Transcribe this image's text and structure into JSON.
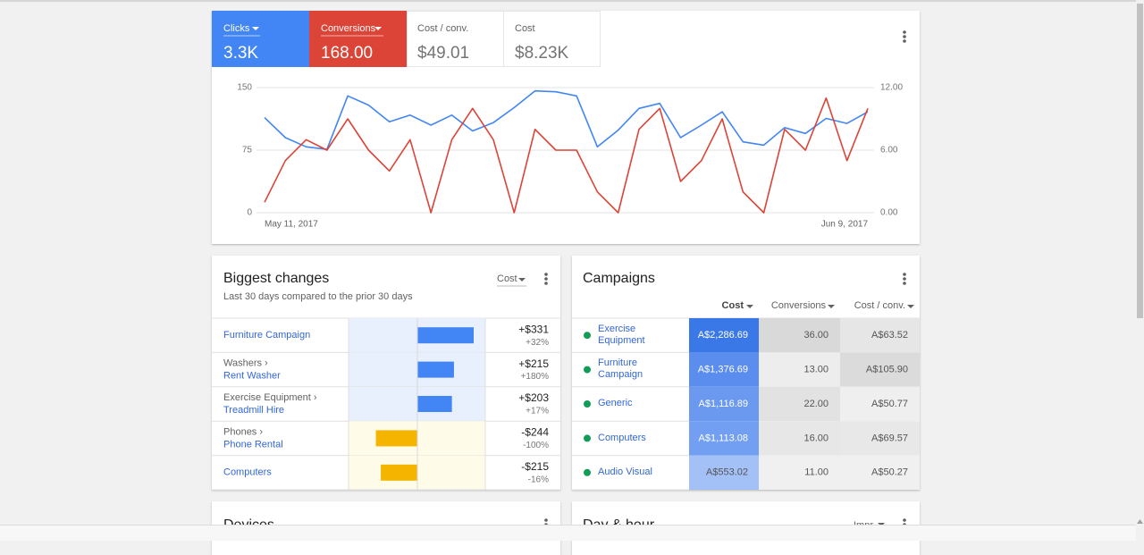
{
  "scorecards": [
    {
      "label": "Cost / conv.",
      "value": "$49.01"
    },
    {
      "label": "Cost",
      "value": "$8.23K"
    }
  ],
  "chart_data": {
    "type": "line",
    "categories": [
      "May 11, 2017",
      null,
      null,
      null,
      null,
      null,
      null,
      null,
      null,
      null,
      null,
      null,
      null,
      null,
      null,
      null,
      null,
      null,
      null,
      null,
      null,
      null,
      null,
      null,
      null,
      null,
      null,
      null,
      null,
      "Jun 9, 2017"
    ],
    "series": [
      {
        "name": "Clicks",
        "total": "3.3K",
        "color": "#4285f4",
        "values": [
          114,
          90,
          79,
          76,
          140,
          129,
          109,
          117,
          105,
          117,
          98,
          108,
          126,
          146,
          145,
          140,
          79,
          99,
          125,
          131,
          90,
          105,
          121,
          85,
          81,
          102,
          95,
          113,
          107,
          121
        ]
      },
      {
        "name": "Conversions",
        "total": "168.00",
        "color": "#db4437",
        "axis": "y2",
        "values": [
          1,
          5,
          7,
          6,
          9,
          6,
          4,
          7,
          0,
          7,
          10,
          7,
          0,
          8,
          6,
          6,
          2,
          0,
          8,
          10,
          3,
          5,
          9,
          2,
          0,
          8,
          6,
          11,
          5,
          10
        ]
      }
    ],
    "ylim": [
      0,
      150
    ],
    "yticks": [
      0,
      75,
      150
    ],
    "y2lim": [
      0,
      12
    ],
    "y2ticks": [
      {
        "value": 0,
        "label": "0.00"
      },
      {
        "value": 6,
        "label": "6.00"
      },
      {
        "value": 12,
        "label": "12.00"
      }
    ],
    "grid": true
  },
  "biggest_changes": {
    "title": "Biggest changes",
    "subtitle": "Last 30 days compared to the prior 30 days",
    "metric": "Cost",
    "rows": [
      {
        "name": "Furniture Campaign",
        "change": 331,
        "change_label": "+$331",
        "percent_label": "+32%"
      },
      {
        "parent": "Washers ›",
        "name": "Rent Washer",
        "change": 215,
        "change_label": "+$215",
        "percent_label": "+180%"
      },
      {
        "parent": "Exercise Equipment ›",
        "name": "Treadmill Hire",
        "change": 203,
        "change_label": "+$203",
        "percent_label": "+17%"
      },
      {
        "parent": "Phones ›",
        "name": "Phone Rental",
        "change": -244,
        "change_label": "-$244",
        "percent_label": "-100%"
      },
      {
        "name": "Computers",
        "change": -215,
        "change_label": "-$215",
        "percent_label": "-16%"
      }
    ]
  },
  "campaigns": {
    "title": "Campaigns",
    "columns": [
      "Cost",
      "Conversions",
      "Cost / conv."
    ],
    "rows": [
      {
        "name": "Exercise Equipment",
        "cells": [
          "A$2,286.69",
          "36.00",
          "A$63.52"
        ]
      },
      {
        "name": "Furniture Campaign",
        "cells": [
          "A$1,376.69",
          "13.00",
          "A$105.90"
        ]
      },
      {
        "name": "Generic",
        "cells": [
          "A$1,116.89",
          "22.00",
          "A$50.77"
        ]
      },
      {
        "name": "Computers",
        "cells": [
          "A$1,113.08",
          "16.00",
          "A$69.57"
        ]
      },
      {
        "name": "Audio Visual",
        "cells": [
          "A$553.02",
          "11.00",
          "A$50.27"
        ]
      }
    ]
  },
  "devices": {
    "title": "Devices"
  },
  "day_hour": {
    "title": "Day & hour",
    "metric": "Impr."
  }
}
